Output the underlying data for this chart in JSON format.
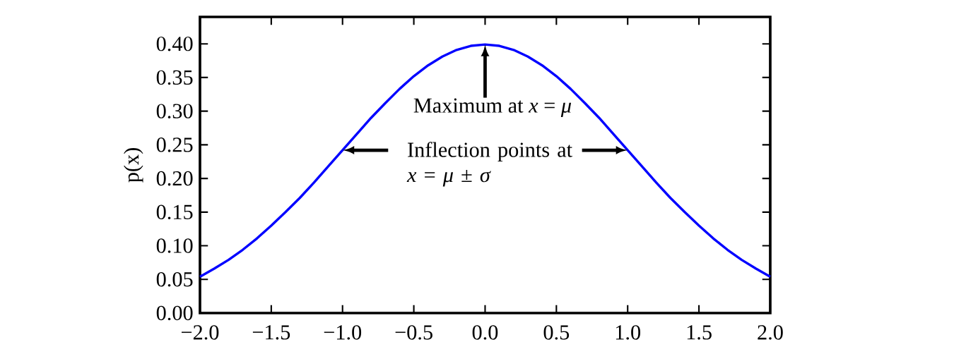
{
  "chart_data": {
    "type": "line",
    "ylabel": "p(x)",
    "x": [
      -2.0,
      -1.9,
      -1.8,
      -1.7,
      -1.6,
      -1.5,
      -1.4,
      -1.3,
      -1.2,
      -1.1,
      -1.0,
      -0.9,
      -0.8,
      -0.7,
      -0.6,
      -0.5,
      -0.4,
      -0.3,
      -0.2,
      -0.1,
      0.0,
      0.1,
      0.2,
      0.3,
      0.4,
      0.5,
      0.6,
      0.7,
      0.8,
      0.9,
      1.0,
      1.1,
      1.2,
      1.3,
      1.4,
      1.5,
      1.6,
      1.7,
      1.8,
      1.9,
      2.0
    ],
    "series": [
      {
        "color": "#0000ff",
        "values": [
          0.054,
          0.066,
          0.079,
          0.094,
          0.111,
          0.13,
          0.15,
          0.171,
          0.194,
          0.218,
          0.242,
          0.266,
          0.29,
          0.312,
          0.333,
          0.352,
          0.368,
          0.381,
          0.391,
          0.397,
          0.399,
          0.397,
          0.391,
          0.381,
          0.368,
          0.352,
          0.333,
          0.312,
          0.29,
          0.266,
          0.242,
          0.218,
          0.194,
          0.171,
          0.15,
          0.13,
          0.111,
          0.094,
          0.079,
          0.066,
          0.054
        ]
      }
    ],
    "xlim": [
      -2.0,
      2.0
    ],
    "ylim": [
      0.0,
      0.44
    ],
    "xticks": [
      {
        "value": -2.0,
        "label": "−2.0"
      },
      {
        "value": -1.5,
        "label": "−1.5"
      },
      {
        "value": -1.0,
        "label": "−1.0"
      },
      {
        "value": -0.5,
        "label": "−0.5"
      },
      {
        "value": 0.0,
        "label": "0.0"
      },
      {
        "value": 0.5,
        "label": "0.5"
      },
      {
        "value": 1.0,
        "label": "1.0"
      },
      {
        "value": 1.5,
        "label": "1.5"
      },
      {
        "value": 2.0,
        "label": "2.0"
      }
    ],
    "yticks": [
      {
        "value": 0.0,
        "label": "0.00"
      },
      {
        "value": 0.05,
        "label": "0.05"
      },
      {
        "value": 0.1,
        "label": "0.10"
      },
      {
        "value": 0.15,
        "label": "0.15"
      },
      {
        "value": 0.2,
        "label": "0.20"
      },
      {
        "value": 0.25,
        "label": "0.25"
      },
      {
        "value": 0.3,
        "label": "0.30"
      },
      {
        "value": 0.35,
        "label": "0.35"
      },
      {
        "value": 0.4,
        "label": "0.40"
      }
    ],
    "annotations": [
      {
        "text": "Maximum at *x* = *μ*",
        "x": 0.0,
        "y": 0.399
      },
      {
        "text": "Inflection points at *x* = *μ* ± *σ*",
        "x": -1.0,
        "y": 0.242
      }
    ],
    "marker": "none",
    "line_style": "solid"
  }
}
